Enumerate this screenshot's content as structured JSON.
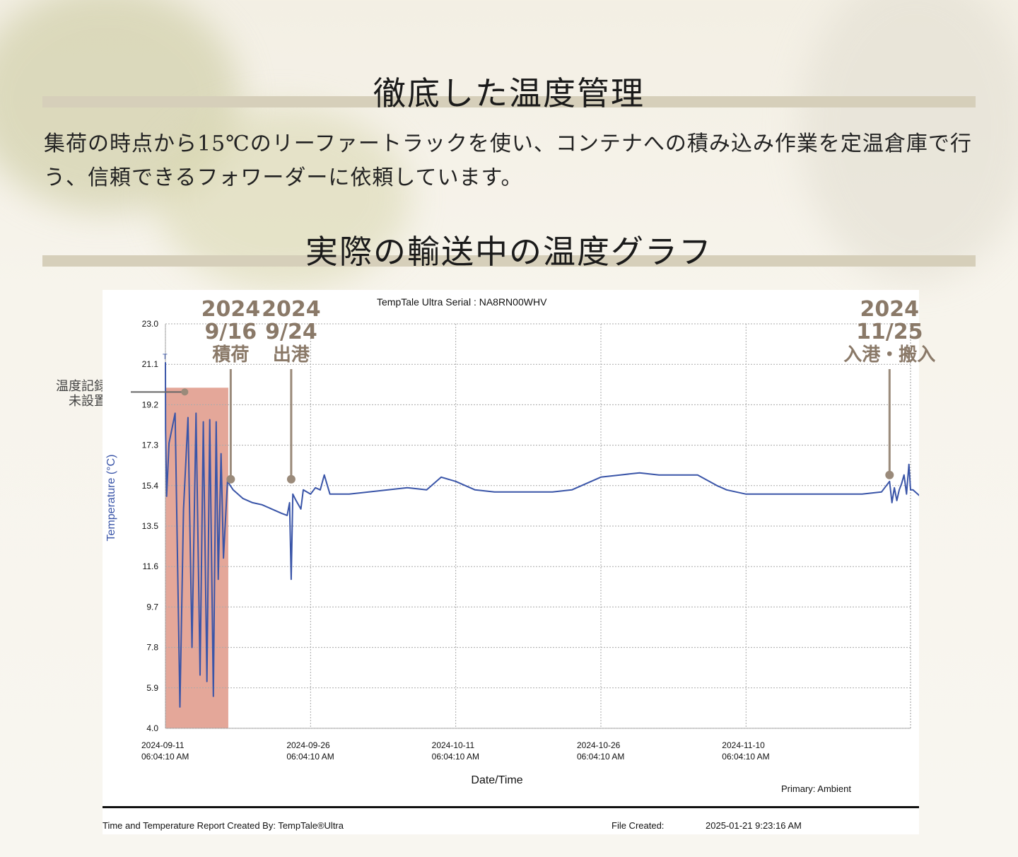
{
  "section1": {
    "heading": "徹底した温度管理",
    "body": "集荷の時点から15℃のリーファートラックを使い、コンテナへの積み込み作業を定温倉庫で行う、信頼できるフォワーダーに依頼しています。"
  },
  "section2": {
    "heading": "実際の輸送中の温度グラフ"
  },
  "chart_data": {
    "type": "line",
    "title": "TempTale Ultra  Serial : NA8RN00WHV",
    "xlabel": "Date/Time",
    "ylabel": "Temperature    (°C)",
    "ylim": [
      4.0,
      23.0
    ],
    "yticks": [
      "23.0",
      "21.1",
      "19.2",
      "17.3",
      "15.4",
      "13.5",
      "11.6",
      "9.7",
      "7.8",
      "5.9",
      "4.0"
    ],
    "xlim": [
      "2024-09-11 06:04",
      "2024-11-27 06:04"
    ],
    "xticks": [
      {
        "date": "2024-09-11",
        "time": "06:04:10 AM"
      },
      {
        "date": "2024-09-26",
        "time": "06:04:10 AM"
      },
      {
        "date": "2024-10-11",
        "time": "06:04:10 AM"
      },
      {
        "date": "2024-10-26",
        "time": "06:04:10 AM"
      },
      {
        "date": "2024-11-10",
        "time": "06:04:10 AM"
      }
    ],
    "grid": true,
    "series": [
      {
        "color": "#3a55a8",
        "points": [
          [
            "2024-09-11 06:04",
            21.2
          ],
          [
            "2024-09-11 06:30",
            18.0
          ],
          [
            "2024-09-11 09:00",
            14.9
          ],
          [
            "2024-09-11 15:00",
            17.4
          ],
          [
            "2024-09-12 06:00",
            18.8
          ],
          [
            "2024-09-12 18:00",
            5.0
          ],
          [
            "2024-09-13 03:00",
            14.3
          ],
          [
            "2024-09-13 14:00",
            18.6
          ],
          [
            "2024-09-14 00:00",
            7.8
          ],
          [
            "2024-09-14 10:00",
            18.8
          ],
          [
            "2024-09-14 20:00",
            6.5
          ],
          [
            "2024-09-15 04:00",
            18.4
          ],
          [
            "2024-09-15 13:00",
            6.2
          ],
          [
            "2024-09-15 20:00",
            18.5
          ],
          [
            "2024-09-16 05:00",
            5.5
          ],
          [
            "2024-09-16 12:00",
            18.4
          ],
          [
            "2024-09-16 17:00",
            11.0
          ],
          [
            "2024-09-17 00:00",
            16.9
          ],
          [
            "2024-09-17 06:00",
            12.0
          ],
          [
            "2024-09-17 16:00",
            15.6
          ],
          [
            "2024-09-18 06:00",
            15.2
          ],
          [
            "2024-09-19 06:00",
            14.8
          ],
          [
            "2024-09-20 06:00",
            14.6
          ],
          [
            "2024-09-21 06:00",
            14.5
          ],
          [
            "2024-09-22 06:00",
            14.3
          ],
          [
            "2024-09-23 06:00",
            14.1
          ],
          [
            "2024-09-23 20:00",
            14.0
          ],
          [
            "2024-09-24 02:00",
            14.6
          ],
          [
            "2024-09-24 06:00",
            11.0
          ],
          [
            "2024-09-24 10:00",
            15.0
          ],
          [
            "2024-09-24 18:00",
            14.7
          ],
          [
            "2024-09-25 06:00",
            14.3
          ],
          [
            "2024-09-25 12:00",
            15.2
          ],
          [
            "2024-09-26 06:00",
            15.0
          ],
          [
            "2024-09-26 18:00",
            15.3
          ],
          [
            "2024-09-27 06:00",
            15.2
          ],
          [
            "2024-09-27 16:00",
            15.9
          ],
          [
            "2024-09-28 06:00",
            15.0
          ],
          [
            "2024-09-30 06:00",
            15.0
          ],
          [
            "2024-10-02 06:00",
            15.1
          ],
          [
            "2024-10-04 06:00",
            15.2
          ],
          [
            "2024-10-06 06:00",
            15.3
          ],
          [
            "2024-10-08 06:00",
            15.2
          ],
          [
            "2024-10-09 18:00",
            15.8
          ],
          [
            "2024-10-11 06:00",
            15.6
          ],
          [
            "2024-10-12 06:00",
            15.4
          ],
          [
            "2024-10-13 06:00",
            15.2
          ],
          [
            "2024-10-15 06:00",
            15.1
          ],
          [
            "2024-10-17 06:00",
            15.1
          ],
          [
            "2024-10-19 06:00",
            15.1
          ],
          [
            "2024-10-21 06:00",
            15.1
          ],
          [
            "2024-10-23 06:00",
            15.2
          ],
          [
            "2024-10-25 06:00",
            15.6
          ],
          [
            "2024-10-26 06:00",
            15.8
          ],
          [
            "2024-10-28 06:00",
            15.9
          ],
          [
            "2024-10-30 06:00",
            16.0
          ],
          [
            "2024-11-01 06:00",
            15.9
          ],
          [
            "2024-11-03 06:00",
            15.9
          ],
          [
            "2024-11-05 06:00",
            15.9
          ],
          [
            "2024-11-07 06:00",
            15.4
          ],
          [
            "2024-11-08 06:00",
            15.2
          ],
          [
            "2024-11-10 06:00",
            15.0
          ],
          [
            "2024-11-12 06:00",
            15.0
          ],
          [
            "2024-11-14 06:00",
            15.0
          ],
          [
            "2024-11-16 06:00",
            15.0
          ],
          [
            "2024-11-18 06:00",
            15.0
          ],
          [
            "2024-11-20 06:00",
            15.0
          ],
          [
            "2024-11-22 06:00",
            15.0
          ],
          [
            "2024-11-24 06:00",
            15.1
          ],
          [
            "2024-11-25 02:00",
            15.6
          ],
          [
            "2024-11-25 08:00",
            14.6
          ],
          [
            "2024-11-25 14:00",
            15.3
          ],
          [
            "2024-11-25 20:00",
            14.7
          ],
          [
            "2024-11-26 02:00",
            15.2
          ],
          [
            "2024-11-26 08:00",
            15.5
          ],
          [
            "2024-11-26 14:00",
            15.9
          ],
          [
            "2024-11-26 20:00",
            15.0
          ],
          [
            "2024-11-27 02:00",
            16.4
          ],
          [
            "2024-11-27 06:00",
            15.2
          ],
          [
            "2024-11-27 12:00",
            15.2
          ],
          [
            "2024-11-28 06:00",
            14.9
          ],
          [
            "2024-11-28 18:00",
            15.0
          ]
        ]
      }
    ],
    "highlight": {
      "x0": "2024-09-11 06:04",
      "x1": "2024-09-17 18:00",
      "y0": 4.0,
      "y1": 20.0,
      "color": "#d9826e"
    },
    "end_markers": [
      "T",
      "T"
    ],
    "annotations": [
      {
        "year": "2024",
        "date": "9/16",
        "event": "積荷",
        "x": "2024-09-18 00:00",
        "y": 15.7
      },
      {
        "year": "2024",
        "date": "9/24",
        "event": "出港",
        "x": "2024-09-24 06:00",
        "y": 15.7
      },
      {
        "year": "2024",
        "date": "11/25",
        "event": "入港・搬入",
        "x": "2024-11-25 02:00",
        "y": 15.9
      }
    ],
    "side_annotation": {
      "line1": "温度記録計",
      "line2": "未設置"
    },
    "primary_label": "Primary: Ambient",
    "annotation_color": "#9a8a7a"
  },
  "footer": {
    "created_by": "Time and Temperature Report Created By:  TempTale®Ultra",
    "file_created_label": "File Created:",
    "file_created_value": "2025-01-21  9:23:16 AM"
  }
}
